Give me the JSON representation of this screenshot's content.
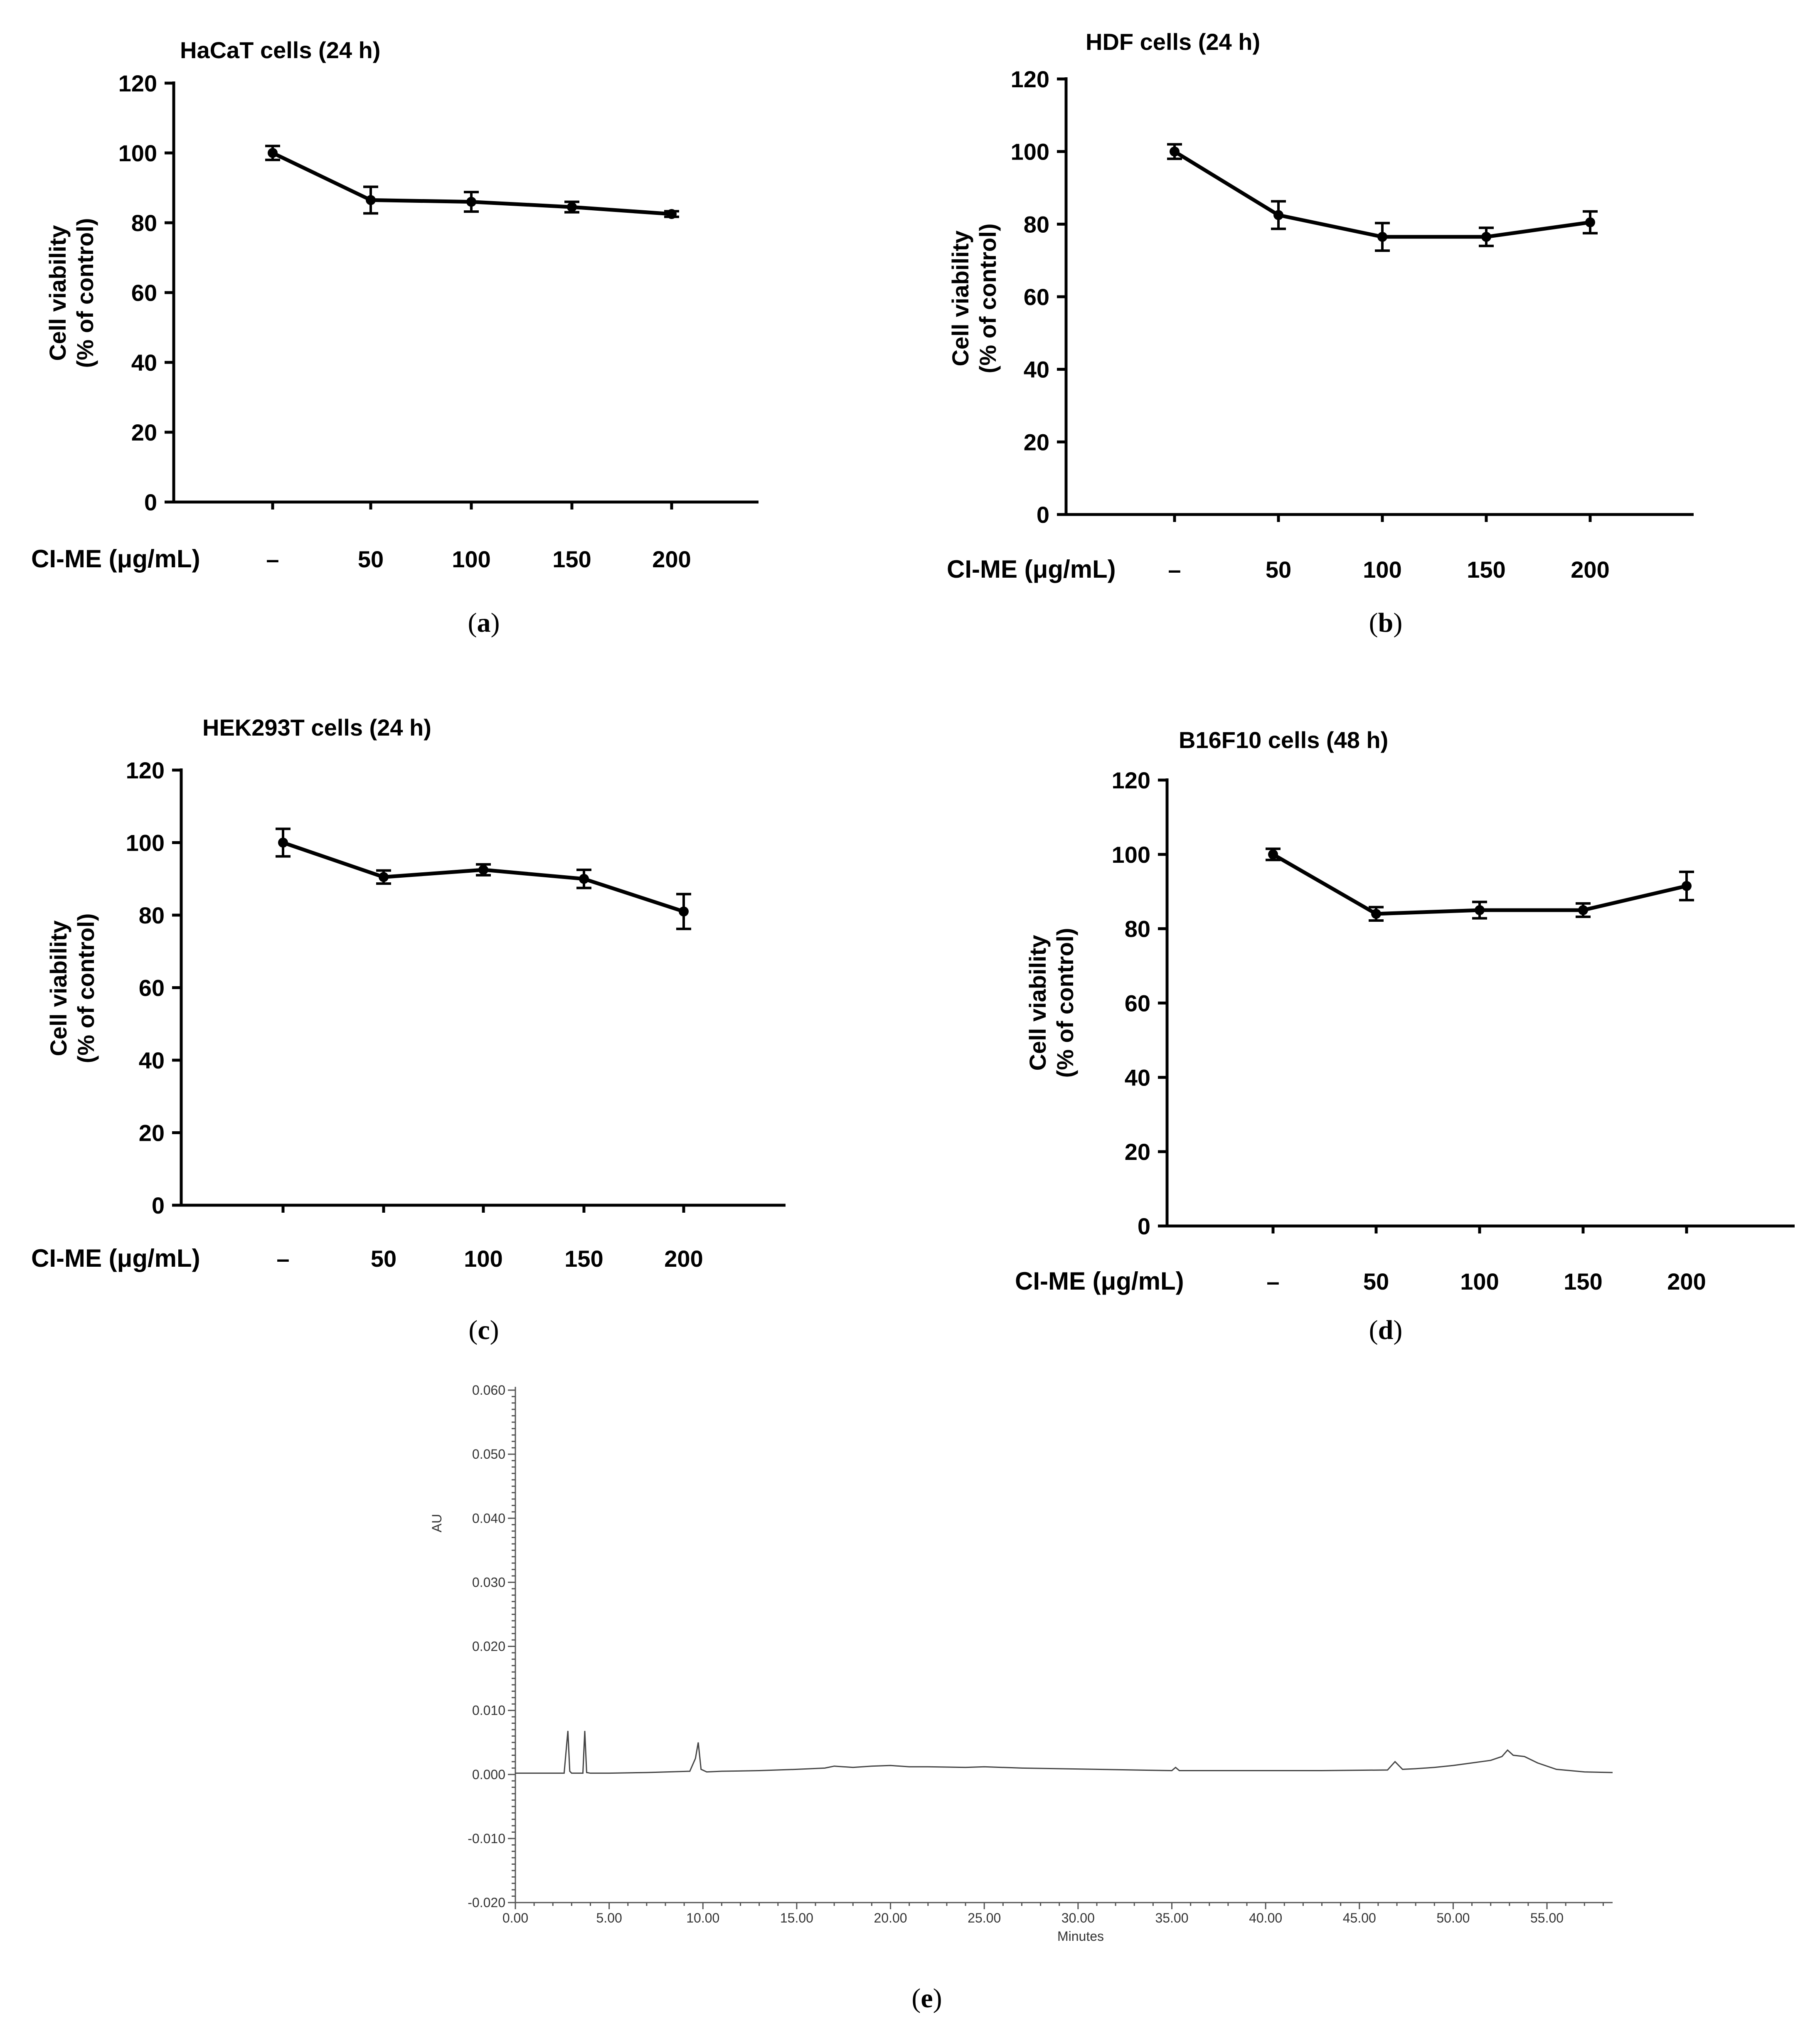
{
  "chart_data": [
    {
      "panel": "a",
      "type": "line",
      "title": "HaCaT cells (24 h)",
      "ylabel_line1": "Cell viability",
      "ylabel_line2": "(% of control)",
      "xlabel": "CI-ME (μg/mL)",
      "categories": [
        "–",
        "50",
        "100",
        "150",
        "200"
      ],
      "values": [
        100,
        86.5,
        86,
        84.5,
        82.5
      ],
      "errors": [
        2,
        3.8,
        2.8,
        1.5,
        0.8
      ],
      "ylim": [
        0,
        120
      ],
      "yticks": [
        "0",
        "20",
        "40",
        "60",
        "80",
        "100",
        "120"
      ],
      "caption": "a"
    },
    {
      "panel": "b",
      "type": "line",
      "title": "HDF cells (24 h)",
      "ylabel_line1": "Cell viability",
      "ylabel_line2": "(% of control)",
      "xlabel": "CI-ME (μg/mL)",
      "categories": [
        "–",
        "50",
        "100",
        "150",
        "200"
      ],
      "values": [
        100,
        82.5,
        76.5,
        76.5,
        80.5
      ],
      "errors": [
        2,
        3.8,
        3.8,
        2.5,
        3
      ],
      "ylim": [
        0,
        120
      ],
      "yticks": [
        "0",
        "20",
        "40",
        "60",
        "80",
        "100",
        "120"
      ],
      "caption": "b"
    },
    {
      "panel": "c",
      "type": "line",
      "title": "HEK293T cells (24 h)",
      "ylabel_line1": "Cell viability",
      "ylabel_line2": "(% of control)",
      "xlabel": "CI-ME (μg/mL)",
      "categories": [
        "–",
        "50",
        "100",
        "150",
        "200"
      ],
      "values": [
        100,
        90.5,
        92.5,
        90,
        81
      ],
      "errors": [
        3.8,
        1.8,
        1.5,
        2.5,
        4.8
      ],
      "ylim": [
        0,
        120
      ],
      "yticks": [
        "0",
        "20",
        "40",
        "60",
        "80",
        "100",
        "120"
      ],
      "caption": "c"
    },
    {
      "panel": "d",
      "type": "line",
      "title": "B16F10 cells (48 h)",
      "ylabel_line1": "Cell viability",
      "ylabel_line2": "(% of control)",
      "xlabel": "CI-ME (μg/mL)",
      "categories": [
        "–",
        "50",
        "100",
        "150",
        "200"
      ],
      "values": [
        100,
        84,
        85,
        85,
        91.5
      ],
      "errors": [
        1.5,
        1.8,
        2.2,
        1.8,
        3.8
      ],
      "ylim": [
        0,
        120
      ],
      "yticks": [
        "0",
        "20",
        "40",
        "60",
        "80",
        "100",
        "120"
      ],
      "caption": "d"
    },
    {
      "panel": "e",
      "type": "line",
      "title": "",
      "ylabel": "AU",
      "xlabel": "Minutes",
      "xlim": [
        0,
        58.5
      ],
      "ylim": [
        -0.02,
        0.06
      ],
      "xticks": [
        "0.00",
        "5.00",
        "10.00",
        "15.00",
        "20.00",
        "25.00",
        "30.00",
        "35.00",
        "40.00",
        "45.00",
        "50.00",
        "55.00"
      ],
      "yticks": [
        "-0.020",
        "-0.010",
        "0.000",
        "0.010",
        "0.020",
        "0.030",
        "0.040",
        "0.050",
        "0.060"
      ],
      "x": [
        0,
        2.6,
        2.8,
        2.9,
        3.0,
        3.2,
        3.6,
        3.7,
        3.8,
        4.0,
        5,
        7,
        9.3,
        9.6,
        9.75,
        9.9,
        10.2,
        11,
        13,
        15,
        16.5,
        17,
        18,
        19,
        20,
        21,
        22,
        24,
        25,
        27,
        29,
        31,
        33,
        35,
        35.2,
        35.4,
        37,
        40,
        43,
        46.5,
        46.9,
        47.3,
        48,
        49,
        50,
        51,
        52,
        52.6,
        52.9,
        53.2,
        53.8,
        54.5,
        55.5,
        57,
        58.5
      ],
      "y": [
        0.0002,
        0.0002,
        0.0068,
        0.0005,
        0.0002,
        0.0002,
        0.0002,
        0.0068,
        0.0003,
        0.0002,
        0.0002,
        0.0003,
        0.0005,
        0.0025,
        0.005,
        0.0008,
        0.0004,
        0.0005,
        0.0006,
        0.0008,
        0.001,
        0.0013,
        0.0011,
        0.0013,
        0.0014,
        0.0012,
        0.0012,
        0.0011,
        0.0012,
        0.001,
        0.0009,
        0.0008,
        0.0007,
        0.0006,
        0.0011,
        0.0006,
        0.0006,
        0.0006,
        0.0006,
        0.0007,
        0.002,
        0.0008,
        0.0009,
        0.0011,
        0.0014,
        0.0018,
        0.0022,
        0.0028,
        0.0038,
        0.003,
        0.0028,
        0.0018,
        0.0008,
        0.0004,
        0.0003
      ],
      "caption": "e"
    }
  ]
}
